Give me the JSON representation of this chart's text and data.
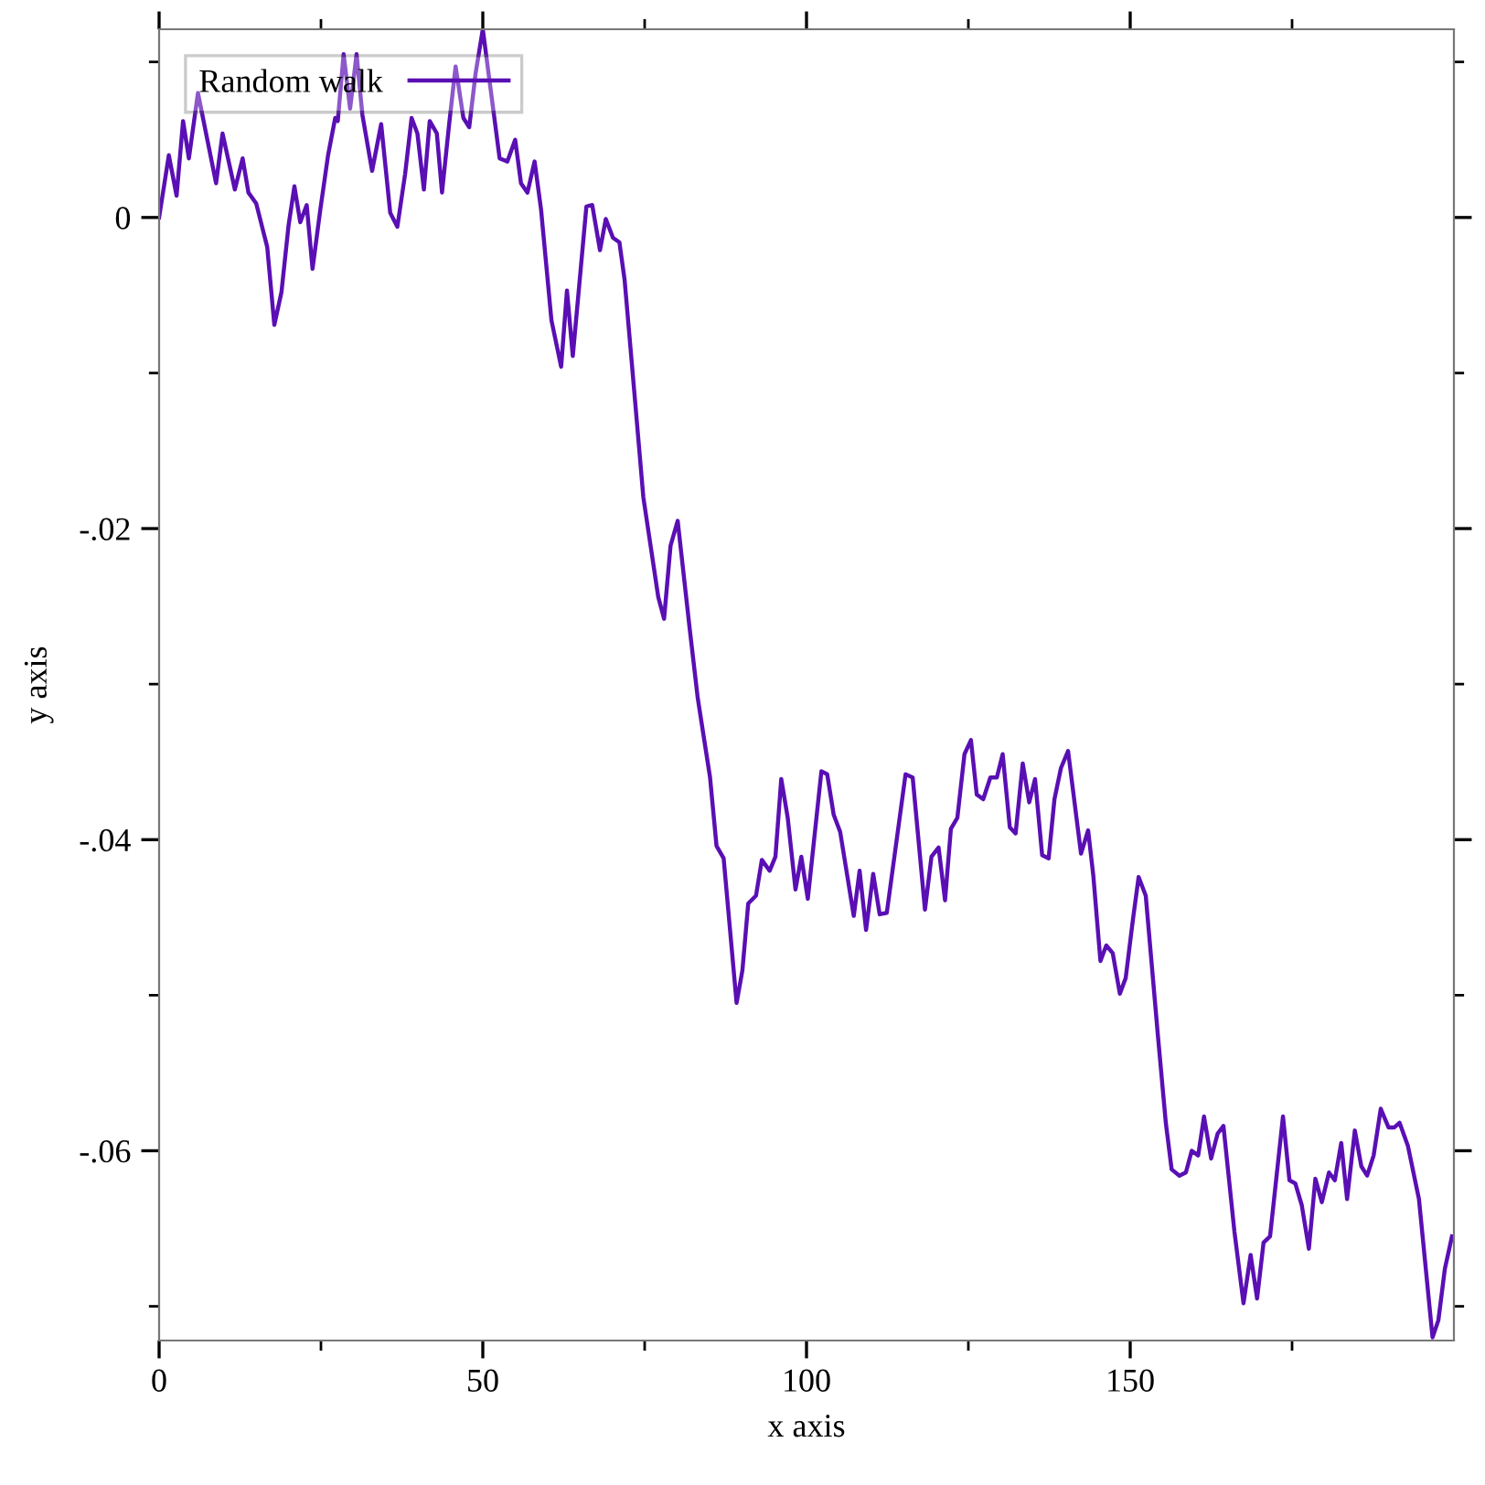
{
  "chart_data": {
    "type": "line",
    "xlabel": "x axis",
    "ylabel": "y axis",
    "xlim": [
      0,
      200
    ],
    "ylim": [
      -0.0722,
      0.0121
    ],
    "xticks": [
      0,
      {
        "value": 25,
        "label": null
      },
      50,
      {
        "value": 75,
        "label": null
      },
      100,
      {
        "value": 125,
        "label": null
      },
      150,
      {
        "value": 175,
        "label": null
      }
    ],
    "yticks": [
      {
        "value": 0.01,
        "label": null
      },
      0,
      {
        "value": -0.01,
        "label": null
      },
      {
        "value": -0.02,
        "label": "-.02"
      },
      {
        "value": -0.03,
        "label": null
      },
      {
        "value": -0.04,
        "label": "-.04"
      },
      {
        "value": -0.05,
        "label": null
      },
      {
        "value": -0.06,
        "label": "-.06"
      },
      {
        "value": -0.07,
        "label": null
      }
    ],
    "grid": false,
    "legend": "top left",
    "marker": "none",
    "line_style": "solid",
    "series": [
      {
        "name": "Random walk",
        "color": "#5a0fb4",
        "x": [
          0,
          1.5,
          2.7,
          3.7,
          4.6,
          6,
          8.8,
          9.8,
          11.7,
          12.9,
          13.8,
          15,
          16.7,
          17.8,
          18.9,
          20,
          20.9,
          21.8,
          22.8,
          23.7,
          24.9,
          26.1,
          27.2,
          27.6,
          28.5,
          29.5,
          30.5,
          31.4,
          32.9,
          34.3,
          35.7,
          36.8,
          38,
          39,
          39.9,
          40.9,
          41.8,
          42.9,
          43.7,
          44.8,
          45.8,
          47,
          47.9,
          48.9,
          50,
          52.6,
          53.8,
          55,
          55.9,
          56.9,
          58,
          59,
          60.6,
          62.1,
          63,
          63.9,
          66,
          66.9,
          68.1,
          69,
          70.1,
          71.1,
          71.9,
          73.5,
          74.8,
          77.1,
          78,
          79,
          80.1,
          82,
          83.2,
          85.1,
          86.1,
          87.2,
          89.2,
          90.1,
          91,
          92.2,
          93.1,
          94.3,
          95.2,
          96.1,
          97.1,
          98.3,
          99.2,
          100.2,
          102.3,
          103.2,
          104.2,
          105.2,
          107.3,
          108.2,
          109.2,
          110.3,
          111.3,
          112.4,
          115.3,
          116.4,
          118.3,
          119.3,
          120.4,
          121.4,
          122.3,
          123.3,
          124.4,
          125.4,
          126.3,
          127.3,
          128.4,
          129.4,
          130.3,
          131.4,
          132.3,
          133.4,
          134.4,
          135.3,
          136.4,
          137.4,
          138.3,
          139.3,
          140.4,
          142.4,
          143.5,
          144.3,
          145.4,
          146.3,
          147.3,
          148.4,
          149.3,
          150.4,
          151.3,
          152.4,
          154.3,
          155.5,
          156.4,
          157.6,
          158.6,
          159.5,
          160.5,
          161.4,
          162.5,
          163.5,
          164.4,
          166.1,
          167.5,
          168.6,
          169.6,
          170.6,
          171.6,
          173.6,
          174.6,
          175.5,
          176.5,
          177.6,
          178.6,
          179.6,
          180.7,
          181.6,
          182.6,
          183.5,
          184.7,
          185.7,
          186.6,
          187.6,
          188.7,
          189.9,
          190.8,
          191.6,
          192.9,
          194.6,
          196.7,
          197.6,
          198.6,
          199.7
        ],
        "values": [
          0,
          0.004,
          0.0014,
          0.0062,
          0.0038,
          0.008,
          0.0022,
          0.0054,
          0.0018,
          0.0038,
          0.0016,
          0.0009,
          -0.0019,
          -0.0069,
          -0.0048,
          -0.0005,
          0.002,
          -0.0003,
          0.0008,
          -0.0033,
          0.0005,
          0.004,
          0.0064,
          0.0062,
          0.0105,
          0.007,
          0.0105,
          0.0066,
          0.003,
          0.006,
          0.0003,
          -0.0006,
          0.0028,
          0.0064,
          0.0054,
          0.0018,
          0.0062,
          0.0054,
          0.0016,
          0.006,
          0.0097,
          0.0064,
          0.0058,
          0.0093,
          0.0121,
          0.0038,
          0.0036,
          0.005,
          0.0022,
          0.0016,
          0.0036,
          0.0005,
          -0.0066,
          -0.0096,
          -0.0047,
          -0.0089,
          0.0007,
          0.0008,
          -0.0021,
          -0.0001,
          -0.0013,
          -0.0016,
          -0.004,
          -0.0117,
          -0.018,
          -0.0244,
          -0.0258,
          -0.0211,
          -0.0195,
          -0.0266,
          -0.0309,
          -0.036,
          -0.0404,
          -0.0412,
          -0.0505,
          -0.0484,
          -0.0441,
          -0.0436,
          -0.0413,
          -0.042,
          -0.0411,
          -0.0361,
          -0.0386,
          -0.0432,
          -0.0411,
          -0.0438,
          -0.0356,
          -0.0358,
          -0.0384,
          -0.0395,
          -0.0449,
          -0.042,
          -0.0458,
          -0.0422,
          -0.0448,
          -0.0447,
          -0.0358,
          -0.036,
          -0.0445,
          -0.0411,
          -0.0405,
          -0.0439,
          -0.0393,
          -0.0386,
          -0.0345,
          -0.0336,
          -0.0371,
          -0.0374,
          -0.036,
          -0.036,
          -0.0345,
          -0.0392,
          -0.0396,
          -0.0351,
          -0.0376,
          -0.0361,
          -0.041,
          -0.0412,
          -0.0374,
          -0.0354,
          -0.0343,
          -0.0409,
          -0.0394,
          -0.0423,
          -0.0478,
          -0.0468,
          -0.0473,
          -0.0499,
          -0.0489,
          -0.0452,
          -0.0424,
          -0.0436,
          -0.0527,
          -0.0582,
          -0.0612,
          -0.0616,
          -0.0614,
          -0.06,
          -0.0603,
          -0.0578,
          -0.0605,
          -0.0589,
          -0.0584,
          -0.0652,
          -0.0698,
          -0.0667,
          -0.0695,
          -0.0659,
          -0.0655,
          -0.0578,
          -0.0619,
          -0.0621,
          -0.0635,
          -0.0663,
          -0.0618,
          -0.0633,
          -0.0614,
          -0.0619,
          -0.0595,
          -0.0631,
          -0.0587,
          -0.061,
          -0.0616,
          -0.0603,
          -0.0573,
          -0.0585,
          -0.0585,
          -0.0582,
          -0.0597,
          -0.0631,
          -0.072,
          -0.0709,
          -0.0676,
          -0.0655
        ]
      }
    ]
  }
}
